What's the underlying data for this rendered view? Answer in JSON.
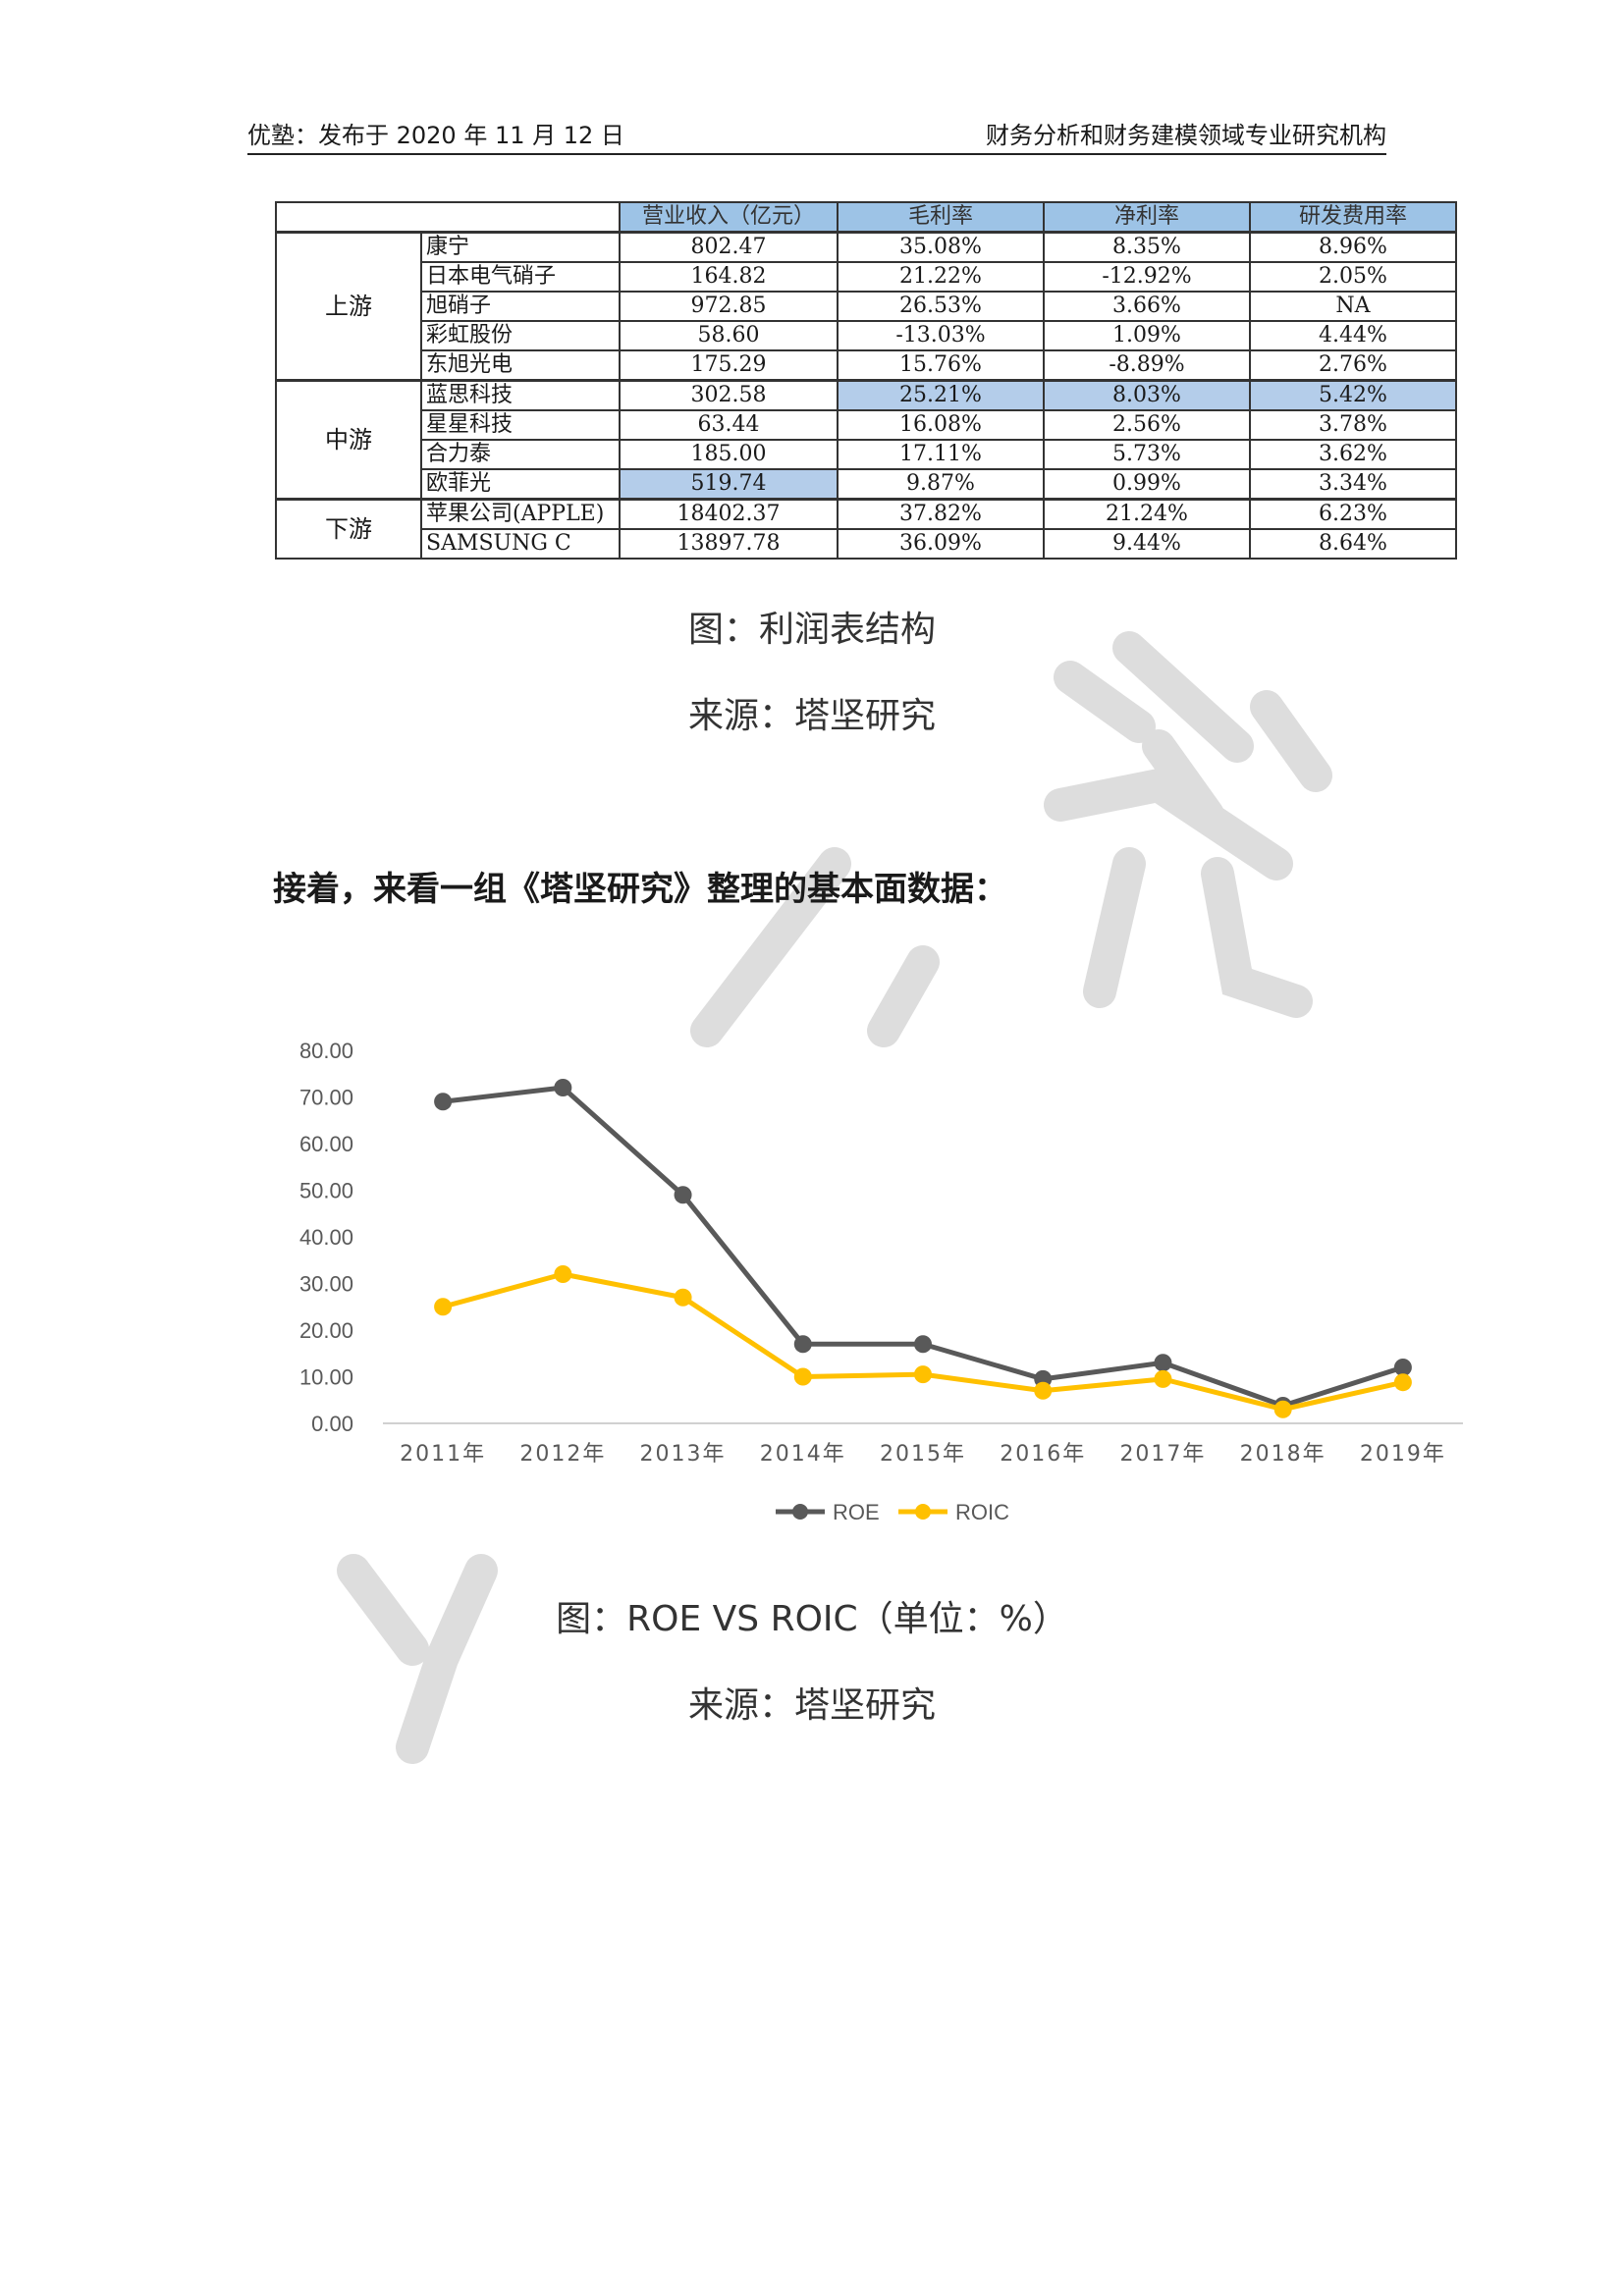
{
  "header": {
    "left": "优塾：发布于 2020 年 11 月 12 日",
    "right": "财务分析和财务建模领域专业研究机构"
  },
  "table": {
    "columns": [
      "",
      "",
      "营业收入（亿元）",
      "毛利率",
      "净利率",
      "研发费用率"
    ],
    "groups": [
      {
        "name": "上游",
        "rows": [
          {
            "company": "康宁",
            "revenue": "802.47",
            "gross": "35.08%",
            "net": "8.35%",
            "rd": "8.96%"
          },
          {
            "company": "日本电气硝子",
            "revenue": "164.82",
            "gross": "21.22%",
            "net": "-12.92%",
            "rd": "2.05%"
          },
          {
            "company": "旭硝子",
            "revenue": "972.85",
            "gross": "26.53%",
            "net": "3.66%",
            "rd": "NA"
          },
          {
            "company": "彩虹股份",
            "revenue": "58.60",
            "gross": "-13.03%",
            "net": "1.09%",
            "rd": "4.44%"
          },
          {
            "company": "东旭光电",
            "revenue": "175.29",
            "gross": "15.76%",
            "net": "-8.89%",
            "rd": "2.76%"
          }
        ]
      },
      {
        "name": "中游",
        "rows": [
          {
            "company": "蓝思科技",
            "revenue": "302.58",
            "gross": "25.21%",
            "net": "8.03%",
            "rd": "5.42%"
          },
          {
            "company": "星星科技",
            "revenue": "63.44",
            "gross": "16.08%",
            "net": "2.56%",
            "rd": "3.78%"
          },
          {
            "company": "合力泰",
            "revenue": "185.00",
            "gross": "17.11%",
            "net": "5.73%",
            "rd": "3.62%"
          },
          {
            "company": "欧菲光",
            "revenue": "519.74",
            "gross": "9.87%",
            "net": "0.99%",
            "rd": "3.34%"
          }
        ]
      },
      {
        "name": "下游",
        "rows": [
          {
            "company": "苹果公司(APPLE)",
            "revenue": "18402.37",
            "gross": "37.82%",
            "net": "21.24%",
            "rd": "6.23%"
          },
          {
            "company": "SAMSUNG C",
            "revenue": "13897.78",
            "gross": "36.09%",
            "net": "9.44%",
            "rd": "8.64%"
          }
        ]
      }
    ],
    "highlight_color": "#b4cdea",
    "header_color": "#9dc3e6"
  },
  "caption1": "图：利润表结构",
  "source1": "来源：塔坚研究",
  "lead_text": "接着，来看一组《塔坚研究》整理的基本面数据：",
  "chart_data": {
    "type": "line",
    "categories": [
      "2011年",
      "2012年",
      "2013年",
      "2014年",
      "2015年",
      "2016年",
      "2017年",
      "2018年",
      "2019年"
    ],
    "series": [
      {
        "name": "ROE",
        "color": "#595959",
        "values": [
          69.0,
          72.0,
          49.0,
          17.0,
          17.0,
          9.5,
          13.0,
          3.8,
          12.0
        ]
      },
      {
        "name": "ROIC",
        "color": "#ffc000",
        "values": [
          25.0,
          32.0,
          27.0,
          10.0,
          10.5,
          7.0,
          9.5,
          3.0,
          8.8
        ]
      }
    ],
    "yticks": [
      "0.00",
      "10.00",
      "20.00",
      "30.00",
      "40.00",
      "50.00",
      "60.00",
      "70.00",
      "80.00"
    ],
    "ylim": [
      0,
      80
    ],
    "legend": "bottom"
  },
  "caption2": "图：ROE VS ROIC（单位：%）",
  "source2": "来源：塔坚研究",
  "watermark_color": "#d9d9d9"
}
